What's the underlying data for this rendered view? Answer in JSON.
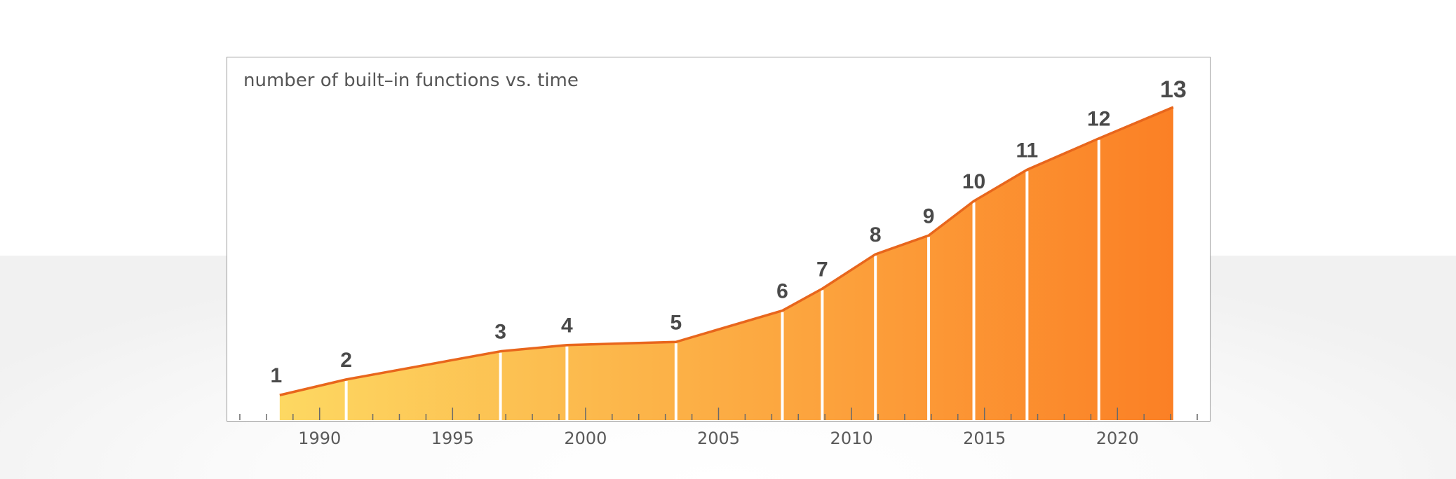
{
  "chart_data": {
    "type": "area",
    "title": "number of built–in functions vs. time",
    "xlabel": "",
    "ylabel": "",
    "xlim": [
      1986.5,
      2023.5
    ],
    "x_ticks": [
      "1990",
      "1995",
      "2000",
      "2005",
      "2010",
      "2015",
      "2020"
    ],
    "grid": false,
    "legend": "none",
    "series": [
      {
        "name": "",
        "points": [
          {
            "label": "1",
            "x": 1988.5,
            "y": 0.08
          },
          {
            "label": "2",
            "x": 1991.0,
            "y": 0.13
          },
          {
            "label": "3",
            "x": 1996.8,
            "y": 0.22
          },
          {
            "label": "4",
            "x": 1999.3,
            "y": 0.24
          },
          {
            "label": "5",
            "x": 2003.4,
            "y": 0.25
          },
          {
            "label": "6",
            "x": 2007.4,
            "y": 0.35
          },
          {
            "label": "7",
            "x": 2008.9,
            "y": 0.42
          },
          {
            "label": "8",
            "x": 2010.9,
            "y": 0.53
          },
          {
            "label": "9",
            "x": 2012.9,
            "y": 0.59
          },
          {
            "label": "10",
            "x": 2014.6,
            "y": 0.7
          },
          {
            "label": "11",
            "x": 2016.6,
            "y": 0.8
          },
          {
            "label": "12",
            "x": 2019.3,
            "y": 0.9
          },
          {
            "label": "13",
            "x": 2022.1,
            "y": 1.0
          }
        ]
      }
    ],
    "colors": {
      "fill_start": "#fdd862",
      "fill_end": "#fb8025",
      "line": "#e8661c",
      "divider": "#ffffff",
      "label": "#4a4a4a",
      "axis_tick": "#6a6a6a"
    }
  }
}
